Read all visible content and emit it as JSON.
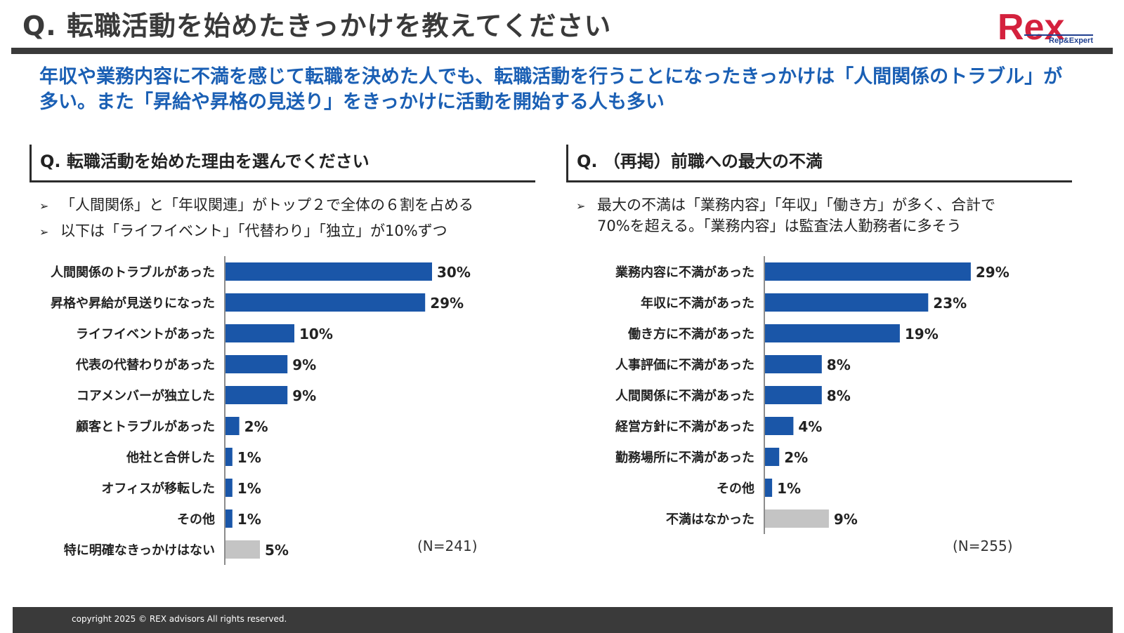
{
  "header": {
    "title": "Q. 転職活動を始めたきっかけを教えてください",
    "logo_text": "Rex",
    "logo_sub": "Rep&Expert"
  },
  "subtitle": "年収や業務内容に不満を感じて転職を決めた人でも、転職活動を行うことになったきっかけは「人間関係のトラブル」が多い。また「昇給や昇格の見送り」をきっかけに活動を開始する人も多い",
  "left_panel": {
    "heading": "Q. 転職活動を始めた理由を選んでください",
    "bullets": [
      {
        "mark": "➢",
        "lines": [
          "「人間関係」と「年収関連」がトップ２で全体の６割を占める"
        ]
      },
      {
        "mark": "➢",
        "lines": [
          "以下は「ライフイベント」「代替わり」「独立」が10%ずつ"
        ]
      }
    ],
    "n": "(N=241)"
  },
  "right_panel": {
    "heading": "Q. （再掲）前職への最大の不満",
    "bullets": [
      {
        "mark": "➢",
        "lines": [
          "最大の不満は「業務内容」「年収」「働き方」が多く、合計で",
          "70%を超える。「業務内容」は監査法人勤務者に多そう"
        ]
      }
    ],
    "n": "(N=255)"
  },
  "footer": {
    "copyright": "copyright 2025 © REX advisors All rights reserved."
  },
  "colors": {
    "bar": "#1a56a8",
    "bar_muted": "#c4c4c4",
    "accent": "#1a5fb4",
    "logo_red": "#d4213d",
    "logo_blue": "#1f3f8f"
  },
  "chart_data": [
    {
      "type": "bar",
      "orientation": "horizontal",
      "title": "Q. 転職活動を始めた理由を選んでください",
      "categories": [
        "人間関係のトラブルがあった",
        "昇格や昇給が見送りになった",
        "ライフイベントがあった",
        "代表の代替わりがあった",
        "コアメンバーが独立した",
        "顧客とトラブルがあった",
        "他社と合併した",
        "オフィスが移転した",
        "その他",
        "特に明確なきっかけはない"
      ],
      "values": [
        30,
        29,
        10,
        9,
        9,
        2,
        1,
        1,
        1,
        5
      ],
      "value_labels": [
        "30%",
        "29%",
        "10%",
        "9%",
        "9%",
        "2%",
        "1%",
        "1%",
        "1%",
        "5%"
      ],
      "muted": [
        false,
        false,
        false,
        false,
        false,
        false,
        false,
        false,
        false,
        true
      ],
      "unit": "%",
      "xlim": [
        0,
        100
      ]
    },
    {
      "type": "bar",
      "orientation": "horizontal",
      "title": "Q. （再掲）前職への最大の不満",
      "categories": [
        "業務内容に不満があった",
        "年収に不満があった",
        "働き方に不満があった",
        "人事評価に不満があった",
        "人間関係に不満があった",
        "経営方針に不満があった",
        "勤務場所に不満があった",
        "その他",
        "不満はなかった"
      ],
      "values": [
        29,
        23,
        19,
        8,
        8,
        4,
        2,
        1,
        9
      ],
      "value_labels": [
        "29%",
        "23%",
        "19%",
        "8%",
        "8%",
        "4%",
        "2%",
        "1%",
        "9%"
      ],
      "muted": [
        false,
        false,
        false,
        false,
        false,
        false,
        false,
        false,
        true
      ],
      "unit": "%",
      "xlim": [
        0,
        100
      ]
    }
  ]
}
